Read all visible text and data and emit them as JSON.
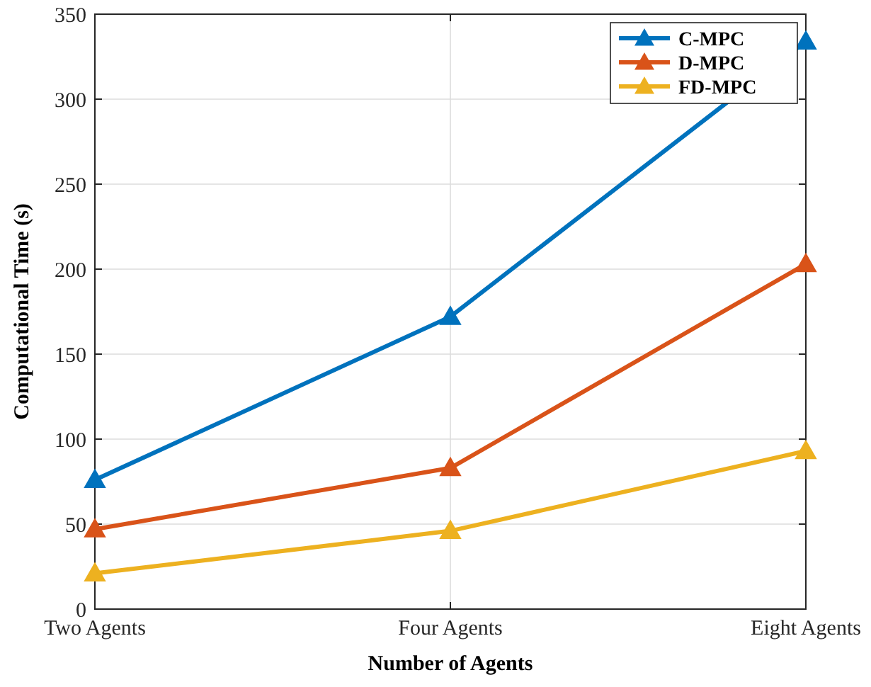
{
  "chart_data": {
    "type": "line",
    "xlabel": "Number of Agents",
    "ylabel": "Computational Time (s)",
    "categories": [
      "Two Agents",
      "Four Agents",
      "Eight Agents"
    ],
    "series": [
      {
        "name": "C-MPC",
        "color": "#0072bd",
        "values": [
          76,
          172,
          334
        ]
      },
      {
        "name": "D-MPC",
        "color": "#d95319",
        "values": [
          47,
          83,
          203
        ]
      },
      {
        "name": "FD-MPC",
        "color": "#edb120",
        "values": [
          21,
          46,
          93
        ]
      }
    ],
    "ylim": [
      0,
      350
    ],
    "yticks": [
      0,
      50,
      100,
      150,
      200,
      250,
      300,
      350
    ],
    "grid": true,
    "legend": "top right",
    "marker": "triangle",
    "line_style": "solid"
  }
}
